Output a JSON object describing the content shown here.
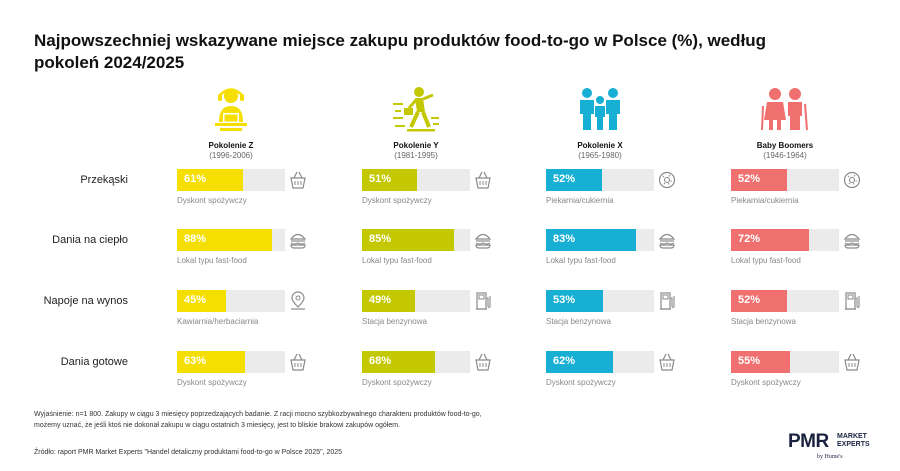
{
  "title": "Najpowszechniej wskazywane miejsce zakupu produktów food-to-go w Polsce (%), według pokoleń 2024/2025",
  "generations": [
    {
      "name": "Pokolenie Z",
      "years": "(1996-2006)",
      "color": "#f5df00",
      "icon": "person-laptop-icon"
    },
    {
      "name": "Pokolenie Y",
      "years": "(1981-1995)",
      "color": "#c3c800",
      "icon": "person-walking-briefcase-icon"
    },
    {
      "name": "Pokolenie X",
      "years": "(1965-1980)",
      "color": "#17b0d4",
      "icon": "family-icon"
    },
    {
      "name": "Baby Boomers",
      "years": "(1946-1964)",
      "color": "#f07070",
      "icon": "elderly-couple-icon"
    }
  ],
  "chart_data": {
    "type": "bar",
    "title": "Najpowszechniej wskazywane miejsce zakupu produktów food-to-go w Polsce (%), według pokoleń 2024/2025",
    "categories": [
      "Przekąski",
      "Dania na ciepło",
      "Napoje na wynos",
      "Dania gotowe"
    ],
    "ylim": [
      0,
      100
    ],
    "series": [
      {
        "name": "Pokolenie Z",
        "values": [
          61,
          88,
          45,
          63
        ],
        "value_labels": [
          "61%",
          "88%",
          "45%",
          "63%"
        ],
        "places": [
          "Dyskont spożywczy",
          "Lokal typu fast-food",
          "Kawiarnia/herbaciarnia",
          "Dyskont spożywczy"
        ],
        "place_icons": [
          "shopping-basket-icon",
          "burger-icon",
          "location-pin-icon",
          "shopping-basket-icon"
        ]
      },
      {
        "name": "Pokolenie Y",
        "values": [
          51,
          85,
          49,
          68
        ],
        "value_labels": [
          "51%",
          "85%",
          "49%",
          "68%"
        ],
        "places": [
          "Dyskont spożywczy",
          "Lokal typu fast-food",
          "Stacja benzynowa",
          "Dyskont spożywczy"
        ],
        "place_icons": [
          "shopping-basket-icon",
          "burger-icon",
          "fuel-pump-icon",
          "shopping-basket-icon"
        ]
      },
      {
        "name": "Pokolenie X",
        "values": [
          52,
          83,
          53,
          62
        ],
        "value_labels": [
          "52%",
          "83%",
          "53%",
          "62%"
        ],
        "places": [
          "Piekarnia/cukiernia",
          "Lokal typu fast-food",
          "Stacja benzynowa",
          "Dyskont spożywczy"
        ],
        "place_icons": [
          "donut-icon",
          "burger-icon",
          "fuel-pump-icon",
          "shopping-basket-icon"
        ]
      },
      {
        "name": "Baby Boomers",
        "values": [
          52,
          72,
          52,
          55
        ],
        "value_labels": [
          "52%",
          "72%",
          "52%",
          "55%"
        ],
        "places": [
          "Piekarnia/cukiernia",
          "Lokal typu fast-food",
          "Stacja benzynowa",
          "Dyskont spożywczy"
        ],
        "place_icons": [
          "donut-icon",
          "burger-icon",
          "fuel-pump-icon",
          "shopping-basket-icon"
        ]
      }
    ]
  },
  "footnote": {
    "line1": "Wyjaśnienie: n=1 800. Zakupy w ciągu 3 miesięcy poprzedzających badanie. Z racji mocno szybkozbywalnego charakteru produktów food-to-go,",
    "line2": "możemy uznać, że jeśli ktoś nie dokonał zakupu w ciągu ostatnich 3 miesięcy, jest to bliskie brakowi zakupów ogółem.",
    "source": "Źródło: raport PMR Market Experts \"Handel detaliczny produktami food-to-go w Polsce 2025\", 2025"
  },
  "logo": {
    "main": "PMR",
    "line1": "MARKET",
    "line2": "EXPERTS",
    "by": "by Hume's"
  }
}
